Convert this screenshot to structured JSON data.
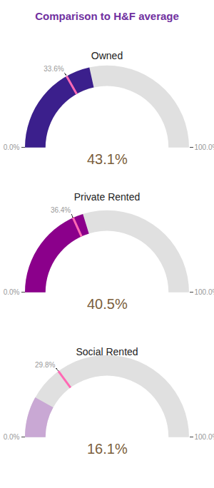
{
  "chart_data": {
    "type": "gauge",
    "title": "Comparison to H&F average",
    "categories": [
      "Owned",
      "Private Rented",
      "Social Rented"
    ],
    "values": [
      43.1,
      40.5,
      16.1
    ],
    "value_labels": [
      "43.1%",
      "40.5%",
      "16.1%"
    ],
    "average": [
      33.6,
      36.4,
      29.8
    ],
    "average_labels": [
      "33.6%",
      "36.4%",
      "29.8%"
    ],
    "colors": [
      "#3B1F8C",
      "#8B008B",
      "#C9A8D4"
    ],
    "ylim": [
      0,
      100
    ],
    "yticks": [
      {
        "value": 0,
        "label": "0.0%"
      },
      {
        "value": 100,
        "label": "100.0%"
      }
    ]
  }
}
